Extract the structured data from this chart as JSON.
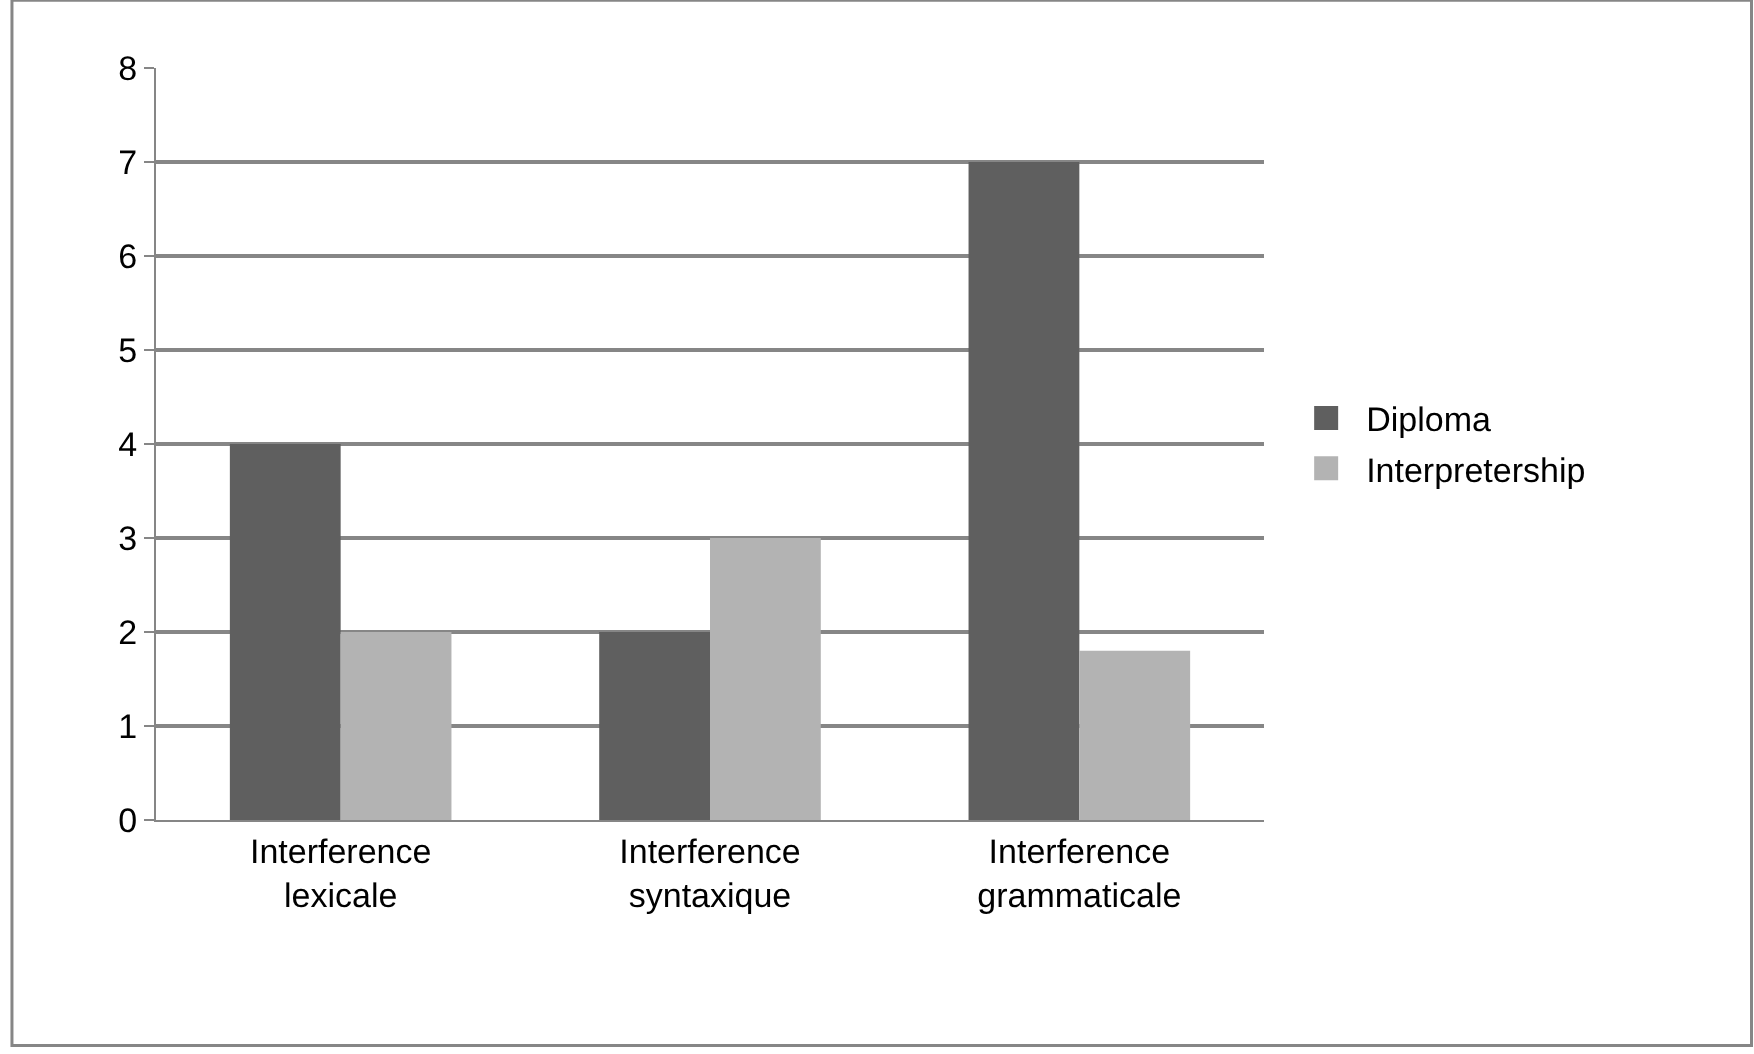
{
  "chart_data": {
    "type": "bar",
    "categories": [
      "Interference lexicale",
      "Interference syntaxique",
      "Interference grammaticale"
    ],
    "series": [
      {
        "name": "Diploma",
        "color": "#5f5f5f",
        "values": [
          4,
          2,
          7
        ]
      },
      {
        "name": "Interpretership",
        "color": "#b3b3b3",
        "values": [
          2,
          3,
          1.8
        ]
      }
    ],
    "ylim": [
      0,
      8
    ],
    "yticks": [
      0,
      1,
      2,
      3,
      4,
      5,
      6,
      7,
      8
    ],
    "grid": "y",
    "legend": "right"
  }
}
